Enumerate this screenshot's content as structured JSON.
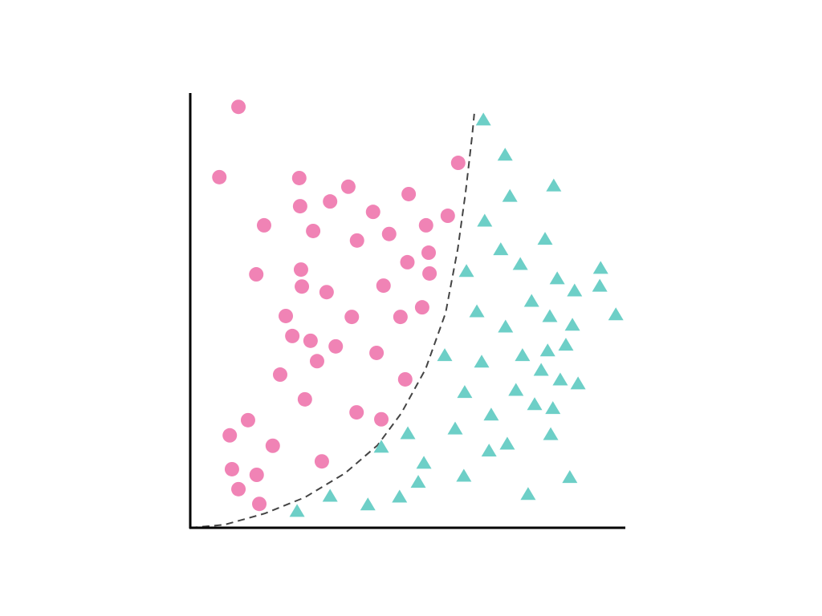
{
  "chart_data": {
    "type": "scatter",
    "title": "",
    "xlabel": "",
    "ylabel": "",
    "xlim": [
      0,
      10
    ],
    "ylim": [
      0,
      10
    ],
    "grid": false,
    "ticks": false,
    "legend": "none",
    "series": [
      {
        "marker": "circle",
        "color": "#f083b5",
        "points": [
          [
            1.11,
            9.7
          ],
          [
            0.67,
            8.08
          ],
          [
            2.51,
            8.06
          ],
          [
            3.64,
            7.86
          ],
          [
            5.03,
            7.69
          ],
          [
            2.53,
            7.41
          ],
          [
            3.22,
            7.52
          ],
          [
            4.21,
            7.28
          ],
          [
            6.17,
            8.41
          ],
          [
            5.93,
            7.19
          ],
          [
            5.43,
            6.97
          ],
          [
            1.7,
            6.97
          ],
          [
            2.83,
            6.84
          ],
          [
            3.84,
            6.62
          ],
          [
            4.58,
            6.77
          ],
          [
            5.49,
            6.34
          ],
          [
            5.0,
            6.12
          ],
          [
            5.51,
            5.86
          ],
          [
            1.52,
            5.84
          ],
          [
            2.55,
            5.95
          ],
          [
            2.57,
            5.56
          ],
          [
            3.14,
            5.43
          ],
          [
            4.45,
            5.58
          ],
          [
            5.34,
            5.08
          ],
          [
            2.2,
            4.88
          ],
          [
            3.72,
            4.86
          ],
          [
            4.84,
            4.86
          ],
          [
            2.35,
            4.42
          ],
          [
            2.77,
            4.31
          ],
          [
            3.35,
            4.18
          ],
          [
            2.92,
            3.84
          ],
          [
            4.29,
            4.03
          ],
          [
            2.07,
            3.53
          ],
          [
            4.95,
            3.42
          ],
          [
            2.64,
            2.96
          ],
          [
            3.83,
            2.66
          ],
          [
            4.4,
            2.5
          ],
          [
            1.33,
            2.48
          ],
          [
            0.91,
            2.13
          ],
          [
            1.9,
            1.89
          ],
          [
            3.03,
            1.53
          ],
          [
            0.96,
            1.35
          ],
          [
            1.53,
            1.22
          ],
          [
            1.11,
            0.89
          ],
          [
            1.59,
            0.55
          ]
        ]
      },
      {
        "marker": "triangle",
        "color": "#6dcfc7",
        "points": [
          [
            6.75,
            9.39
          ],
          [
            7.25,
            8.58
          ],
          [
            8.37,
            7.87
          ],
          [
            7.36,
            7.63
          ],
          [
            6.78,
            7.06
          ],
          [
            8.17,
            6.64
          ],
          [
            7.15,
            6.4
          ],
          [
            7.6,
            6.06
          ],
          [
            6.36,
            5.9
          ],
          [
            9.45,
            5.97
          ],
          [
            8.45,
            5.73
          ],
          [
            8.85,
            5.45
          ],
          [
            9.43,
            5.56
          ],
          [
            7.86,
            5.21
          ],
          [
            6.6,
            4.97
          ],
          [
            8.28,
            4.86
          ],
          [
            7.26,
            4.62
          ],
          [
            8.8,
            4.66
          ],
          [
            9.8,
            4.9
          ],
          [
            5.86,
            3.96
          ],
          [
            7.65,
            3.96
          ],
          [
            8.23,
            4.07
          ],
          [
            8.65,
            4.2
          ],
          [
            6.71,
            3.81
          ],
          [
            8.08,
            3.62
          ],
          [
            8.52,
            3.4
          ],
          [
            8.93,
            3.31
          ],
          [
            6.32,
            3.11
          ],
          [
            7.5,
            3.16
          ],
          [
            7.93,
            2.83
          ],
          [
            8.35,
            2.74
          ],
          [
            6.93,
            2.59
          ],
          [
            6.1,
            2.27
          ],
          [
            5.01,
            2.16
          ],
          [
            8.3,
            2.14
          ],
          [
            4.4,
            1.85
          ],
          [
            7.3,
            1.92
          ],
          [
            6.88,
            1.76
          ],
          [
            5.38,
            1.48
          ],
          [
            6.3,
            1.18
          ],
          [
            8.74,
            1.15
          ],
          [
            5.25,
            1.04
          ],
          [
            7.78,
            0.76
          ],
          [
            3.22,
            0.72
          ],
          [
            4.82,
            0.7
          ],
          [
            4.09,
            0.52
          ],
          [
            2.46,
            0.37
          ]
        ]
      }
    ],
    "decision_boundary": {
      "style": "dashed",
      "color": "#444444",
      "points": [
        [
          0,
          0
        ],
        [
          0.79,
          0.07
        ],
        [
          1.72,
          0.33
        ],
        [
          2.64,
          0.7
        ],
        [
          3.57,
          1.26
        ],
        [
          4.31,
          1.9
        ],
        [
          4.86,
          2.64
        ],
        [
          5.42,
          3.66
        ],
        [
          5.88,
          4.95
        ],
        [
          6.16,
          6.43
        ],
        [
          6.34,
          7.73
        ],
        [
          6.49,
          9.02
        ],
        [
          6.54,
          9.54
        ]
      ]
    }
  }
}
